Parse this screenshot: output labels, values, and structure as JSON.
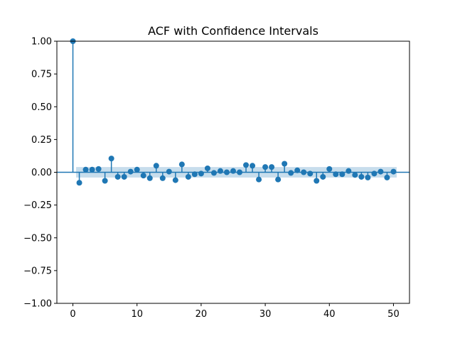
{
  "chart_data": {
    "type": "scatter",
    "title": "ACF with Confidence Intervals",
    "xlabel": "",
    "ylabel": "",
    "xlim": [
      -2.5,
      52.5
    ],
    "ylim": [
      -1.0,
      1.0
    ],
    "xticks": [
      0,
      10,
      20,
      30,
      40,
      50
    ],
    "xtick_labels": [
      "0",
      "10",
      "20",
      "30",
      "40",
      "50"
    ],
    "yticks": [
      1.0,
      0.75,
      0.5,
      0.25,
      0.0,
      -0.25,
      -0.5,
      -0.75,
      -1.0
    ],
    "ytick_labels": [
      "1.00",
      "0.75",
      "0.50",
      "0.25",
      "0.00",
      "−0.25",
      "−0.50",
      "−0.75",
      "−1.00"
    ],
    "grid": false,
    "series": [
      {
        "lags": [
          0,
          1,
          2,
          3,
          4,
          5,
          6,
          7,
          8,
          9,
          10,
          11,
          12,
          13,
          14,
          15,
          16,
          17,
          18,
          19,
          20,
          21,
          22,
          23,
          24,
          25,
          26,
          27,
          28,
          29,
          30,
          31,
          32,
          33,
          34,
          35,
          36,
          37,
          38,
          39,
          40,
          41,
          42,
          43,
          44,
          45,
          46,
          47,
          48,
          49,
          50
        ],
        "values": [
          1.0,
          -0.08,
          0.02,
          0.02,
          0.025,
          -0.065,
          0.105,
          -0.035,
          -0.035,
          0.005,
          0.02,
          -0.025,
          -0.045,
          0.05,
          -0.045,
          0.005,
          -0.06,
          0.06,
          -0.035,
          -0.015,
          -0.01,
          0.03,
          -0.005,
          0.01,
          0.0,
          0.01,
          0.0,
          0.055,
          0.05,
          -0.055,
          0.04,
          0.04,
          -0.055,
          0.065,
          -0.005,
          0.015,
          0.0,
          -0.01,
          -0.065,
          -0.035,
          0.025,
          -0.015,
          -0.015,
          0.01,
          -0.02,
          -0.035,
          -0.04,
          -0.01,
          0.005,
          -0.04,
          0.005
        ]
      }
    ],
    "confidence_band": {
      "lower": -0.04,
      "upper": 0.04,
      "from_lag": 0.5,
      "to_lag": 50.5
    },
    "colors": {
      "stem": "#1f77b4",
      "marker": "#1f77b4",
      "band": "#1f77b4",
      "axes": "#000000"
    }
  }
}
